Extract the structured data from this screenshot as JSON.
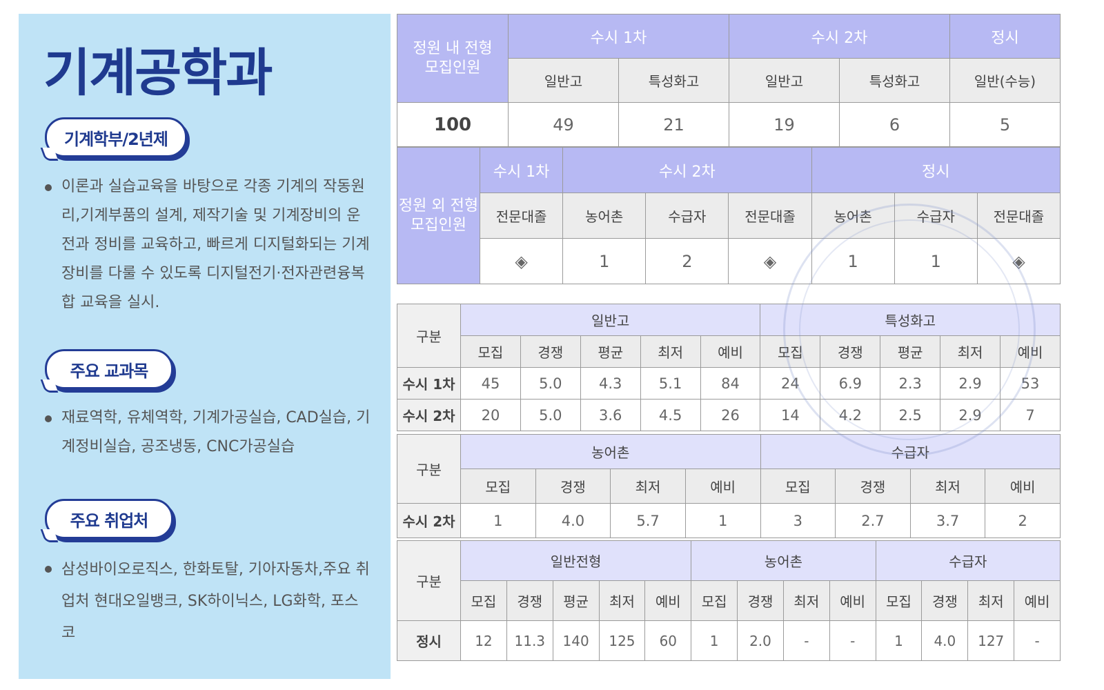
{
  "department": {
    "title": "기계공학과",
    "sections": [
      {
        "label": "기계학부/2년제",
        "text": "이론과 실습교육을 바탕으로 각종 기계의 작동원리,기계부품의 설계, 제작기술 및 기계장비의 운전과 정비를 교육하고, 빠르게 디지털화되는 기계장비를 다룰 수 있도록 디지털전기·전자관련융복합 교육을 실시."
      },
      {
        "label": "주요 교과목",
        "text": "재료역학, 유체역학, 기계가공실습, CAD실습, 기계정비실습, 공조냉동, CNC가공실습"
      },
      {
        "label": "주요 취업처",
        "text": "삼성바이오로직스, 한화토탈, 기아자동차,주요 취업처 현대오일뱅크, SK하이닉스, LG화학, 포스코"
      }
    ]
  },
  "quota_in": {
    "row_label": "정원 내 전형\n모집인원",
    "groups": [
      "수시 1차",
      "수시 2차",
      "정시"
    ],
    "subs": [
      "일반고",
      "특성화고",
      "일반고",
      "특성화고",
      "일반(수능)"
    ],
    "total": "100",
    "values": [
      "49",
      "21",
      "19",
      "6",
      "5"
    ]
  },
  "quota_out": {
    "row_label": "정원 외 전형\n모집인원",
    "groups": [
      "수시 1차",
      "수시 2차",
      "정시"
    ],
    "subs": [
      "전문대졸",
      "농어촌",
      "수급자",
      "전문대졸",
      "농어촌",
      "수급자",
      "전문대졸"
    ],
    "values": [
      "◈",
      "1",
      "2",
      "◈",
      "1",
      "1",
      "◈"
    ]
  },
  "stats1": {
    "corner": "구분",
    "groups": [
      "일반고",
      "특성화고"
    ],
    "cols": [
      "모집",
      "경쟁",
      "평균",
      "최저",
      "예비",
      "모집",
      "경쟁",
      "평균",
      "최저",
      "예비"
    ],
    "rows": [
      {
        "label": "수시 1차",
        "values": [
          "45",
          "5.0",
          "4.3",
          "5.1",
          "84",
          "24",
          "6.9",
          "2.3",
          "2.9",
          "53"
        ]
      },
      {
        "label": "수시 2차",
        "values": [
          "20",
          "5.0",
          "3.6",
          "4.5",
          "26",
          "14",
          "4.2",
          "2.5",
          "2.9",
          "7"
        ]
      }
    ]
  },
  "stats2": {
    "corner": "구분",
    "groups": [
      "농어촌",
      "수급자"
    ],
    "cols": [
      "모집",
      "경쟁",
      "최저",
      "예비",
      "모집",
      "경쟁",
      "최저",
      "예비"
    ],
    "rows": [
      {
        "label": "수시 2차",
        "values": [
          "1",
          "4.0",
          "5.7",
          "1",
          "3",
          "2.7",
          "3.7",
          "2"
        ]
      }
    ]
  },
  "stats3": {
    "corner": "구분",
    "groups": [
      "일반전형",
      "농어촌",
      "수급자"
    ],
    "cols": [
      "모집",
      "경쟁",
      "평균",
      "최저",
      "예비",
      "모집",
      "경쟁",
      "최저",
      "예비",
      "모집",
      "경쟁",
      "최저",
      "예비"
    ],
    "rows": [
      {
        "label": "정시",
        "values": [
          "12",
          "11.3",
          "140",
          "125",
          "60",
          "1",
          "2.0",
          "-",
          "-",
          "1",
          "4.0",
          "127",
          "-"
        ]
      }
    ]
  },
  "colors": {
    "panel": "#bfe3f6",
    "title": "#1f3a8f",
    "header": "#b7b9f3",
    "subheader": "#ececec"
  }
}
